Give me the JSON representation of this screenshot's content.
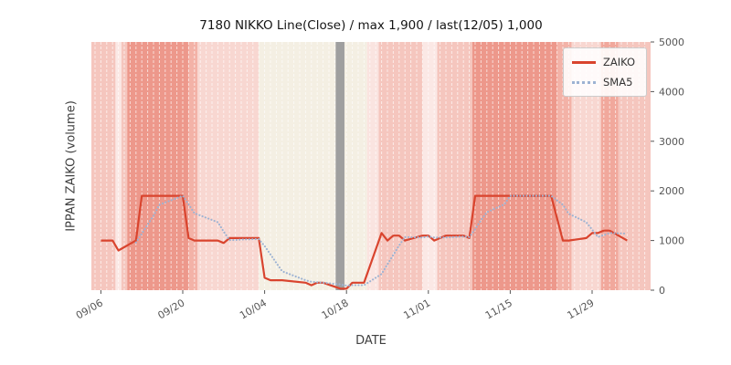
{
  "chart_data": {
    "type": "line",
    "title": "7180 NIKKO Line(Close) / max 1,900 / last(12/05) 1,000",
    "xlabel": "DATE",
    "ylabel": "IPPAN ZAIKO (volume)",
    "ylim": [
      0,
      5000
    ],
    "yticks": [
      0,
      1000,
      2000,
      3000,
      4000,
      5000
    ],
    "xticks": [
      "09/06",
      "09/20",
      "10/04",
      "10/18",
      "11/01",
      "11/15",
      "11/29"
    ],
    "x_base_date": "09/05",
    "grid": "vertical-day-stripes",
    "annotations": {
      "max": 1900,
      "last_date": "12/05",
      "last_value": 1000
    },
    "legend": {
      "position": "upper right",
      "entries": [
        {
          "label": "ZAIKO",
          "color": "#d9442e",
          "style": "solid"
        },
        {
          "label": "SMA5",
          "color": "#9db3d3",
          "style": "dotted"
        }
      ]
    },
    "series": [
      {
        "name": "ZAIKO",
        "color": "#d9442e",
        "style": "solid",
        "points": [
          [
            "09/06",
            1000
          ],
          [
            "09/07",
            1000
          ],
          [
            "09/08",
            1000
          ],
          [
            "09/09",
            800
          ],
          [
            "09/12",
            1000
          ],
          [
            "09/13",
            1900
          ],
          [
            "09/14",
            1900
          ],
          [
            "09/15",
            1900
          ],
          [
            "09/16",
            1900
          ],
          [
            "09/20",
            1900
          ],
          [
            "09/21",
            1050
          ],
          [
            "09/22",
            1000
          ],
          [
            "09/26",
            1000
          ],
          [
            "09/27",
            950
          ],
          [
            "09/28",
            1050
          ],
          [
            "09/29",
            1050
          ],
          [
            "09/30",
            1050
          ],
          [
            "10/03",
            1050
          ],
          [
            "10/04",
            250
          ],
          [
            "10/05",
            200
          ],
          [
            "10/06",
            200
          ],
          [
            "10/07",
            200
          ],
          [
            "10/11",
            150
          ],
          [
            "10/12",
            100
          ],
          [
            "10/13",
            150
          ],
          [
            "10/14",
            150
          ],
          [
            "10/17",
            30
          ],
          [
            "10/18",
            30
          ],
          [
            "10/19",
            150
          ],
          [
            "10/20",
            150
          ],
          [
            "10/21",
            150
          ],
          [
            "10/24",
            1150
          ],
          [
            "10/25",
            1000
          ],
          [
            "10/26",
            1100
          ],
          [
            "10/27",
            1100
          ],
          [
            "10/28",
            1000
          ],
          [
            "10/31",
            1100
          ],
          [
            "11/01",
            1100
          ],
          [
            "11/02",
            1000
          ],
          [
            "11/04",
            1100
          ],
          [
            "11/07",
            1100
          ],
          [
            "11/08",
            1050
          ],
          [
            "11/09",
            1900
          ],
          [
            "11/10",
            1900
          ],
          [
            "11/11",
            1900
          ],
          [
            "11/14",
            1900
          ],
          [
            "11/15",
            1900
          ],
          [
            "11/16",
            1900
          ],
          [
            "11/17",
            1900
          ],
          [
            "11/18",
            1900
          ],
          [
            "11/21",
            1900
          ],
          [
            "11/22",
            1900
          ],
          [
            "11/24",
            1000
          ],
          [
            "11/25",
            1000
          ],
          [
            "11/28",
            1050
          ],
          [
            "11/29",
            1150
          ],
          [
            "11/30",
            1150
          ],
          [
            "12/01",
            1200
          ],
          [
            "12/02",
            1200
          ],
          [
            "12/05",
            1000
          ]
        ]
      },
      {
        "name": "SMA5",
        "color": "#9db3d3",
        "style": "dotted",
        "derived_from": "ZAIKO",
        "window": 5
      }
    ],
    "event_marker": {
      "date": "10/17",
      "color": "#9f9f9f",
      "type": "vertical-bar"
    },
    "background_bands": [
      {
        "start_day": -0.7,
        "end_day": 3.5,
        "color": "#f5c6be"
      },
      {
        "start_day": 3.5,
        "end_day": 4.5,
        "color": "#fbe8e5"
      },
      {
        "start_day": 4.5,
        "end_day": 5.5,
        "color": "#f5c6be"
      },
      {
        "start_day": 5.5,
        "end_day": 16,
        "color": "#ed988b"
      },
      {
        "start_day": 16,
        "end_day": 17.5,
        "color": "#f3b2a7"
      },
      {
        "start_day": 17.5,
        "end_day": 28,
        "color": "#f8d7d1"
      },
      {
        "start_day": 28,
        "end_day": 46.5,
        "color": "#f4efe3"
      },
      {
        "start_day": 46.5,
        "end_day": 48.5,
        "color": "#fae4e0"
      },
      {
        "start_day": 48.5,
        "end_day": 56,
        "color": "#f5c6be"
      },
      {
        "start_day": 56,
        "end_day": 58.5,
        "color": "#fbe8e5"
      },
      {
        "start_day": 58.5,
        "end_day": 64.5,
        "color": "#f5c6be"
      },
      {
        "start_day": 64.5,
        "end_day": 79,
        "color": "#ed988b"
      },
      {
        "start_day": 79,
        "end_day": 81.5,
        "color": "#f3b2a7"
      },
      {
        "start_day": 81.5,
        "end_day": 86.5,
        "color": "#f8d7d1"
      },
      {
        "start_day": 86.5,
        "end_day": 89.5,
        "color": "#f1a89c"
      },
      {
        "start_day": 89.5,
        "end_day": 95.6,
        "color": "#f5c6be"
      }
    ]
  }
}
